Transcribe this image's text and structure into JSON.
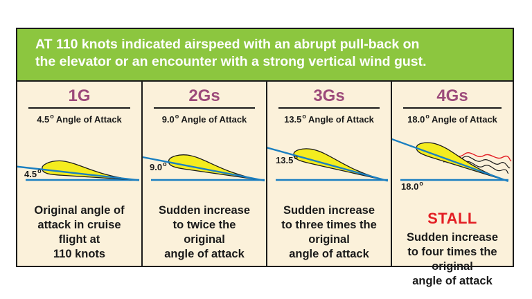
{
  "header": {
    "lines": [
      "AT 110 knots indicated airspeed with an abrupt pull-back on",
      "the elevator or an encounter with a strong vertical wind gust."
    ]
  },
  "panels": [
    {
      "title": "1G",
      "aoa_value": "4.5",
      "aoa_degree": "o",
      "aoa_text": "Angle of Attack",
      "angle_label": "4.5",
      "angle_deg": 4.5,
      "description": [
        "Original angle of",
        "attack in cruise",
        "flight at",
        "110 knots"
      ]
    },
    {
      "title": "2Gs",
      "aoa_value": "9.0",
      "aoa_degree": "o",
      "aoa_text": "Angle of Attack",
      "angle_label": "9.0",
      "angle_deg": 9.0,
      "description": [
        "Sudden increase",
        "to twice the",
        "original",
        "angle of attack"
      ]
    },
    {
      "title": "3Gs",
      "aoa_value": "13.5",
      "aoa_degree": "o",
      "aoa_text": "Angle of Attack",
      "angle_label": "13.5",
      "angle_deg": 13.5,
      "description": [
        "Sudden increase",
        "to three times the",
        "original",
        "angle of attack"
      ]
    },
    {
      "title": "4Gs",
      "aoa_value": "18.0",
      "aoa_degree": "o",
      "aoa_text": "Angle of Attack",
      "angle_label": "18.0",
      "angle_deg": 18.0,
      "stall_label": "STALL",
      "description": [
        "Sudden increase",
        "to four times the",
        "original",
        "angle of attack"
      ]
    }
  ],
  "colors": {
    "header_bg": "#8cc63f",
    "panel_bg": "#fbf1da",
    "title": "#9c4a7a",
    "airfoil_fill": "#f4ec1f",
    "chord_line": "#1a7fc1",
    "stall": "#e31e24"
  }
}
